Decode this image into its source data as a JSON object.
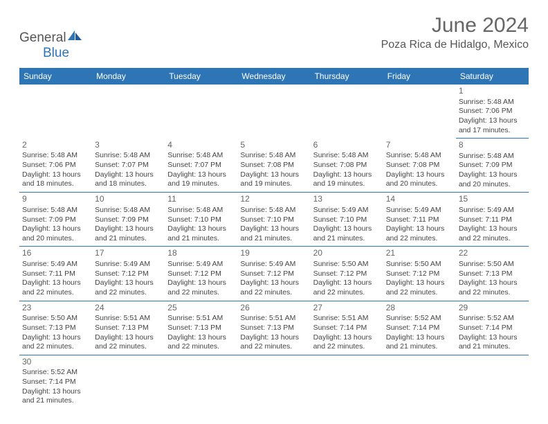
{
  "brand": {
    "left": "General",
    "right": "Blue"
  },
  "title": "June 2024",
  "location": "Poza Rica de Hidalgo, Mexico",
  "colors": {
    "header_bg": "#2e75b6",
    "header_fg": "#ffffff",
    "border": "#2e75b6",
    "text": "#444444"
  },
  "weekdays": [
    "Sunday",
    "Monday",
    "Tuesday",
    "Wednesday",
    "Thursday",
    "Friday",
    "Saturday"
  ],
  "weeks": [
    [
      null,
      null,
      null,
      null,
      null,
      null,
      {
        "day": "1",
        "sunrise": "Sunrise: 5:48 AM",
        "sunset": "Sunset: 7:06 PM",
        "daylight": "Daylight: 13 hours and 17 minutes."
      }
    ],
    [
      {
        "day": "2",
        "sunrise": "Sunrise: 5:48 AM",
        "sunset": "Sunset: 7:06 PM",
        "daylight": "Daylight: 13 hours and 18 minutes."
      },
      {
        "day": "3",
        "sunrise": "Sunrise: 5:48 AM",
        "sunset": "Sunset: 7:07 PM",
        "daylight": "Daylight: 13 hours and 18 minutes."
      },
      {
        "day": "4",
        "sunrise": "Sunrise: 5:48 AM",
        "sunset": "Sunset: 7:07 PM",
        "daylight": "Daylight: 13 hours and 19 minutes."
      },
      {
        "day": "5",
        "sunrise": "Sunrise: 5:48 AM",
        "sunset": "Sunset: 7:08 PM",
        "daylight": "Daylight: 13 hours and 19 minutes."
      },
      {
        "day": "6",
        "sunrise": "Sunrise: 5:48 AM",
        "sunset": "Sunset: 7:08 PM",
        "daylight": "Daylight: 13 hours and 19 minutes."
      },
      {
        "day": "7",
        "sunrise": "Sunrise: 5:48 AM",
        "sunset": "Sunset: 7:08 PM",
        "daylight": "Daylight: 13 hours and 20 minutes."
      },
      {
        "day": "8",
        "sunrise": "Sunrise: 5:48 AM",
        "sunset": "Sunset: 7:09 PM",
        "daylight": "Daylight: 13 hours and 20 minutes."
      }
    ],
    [
      {
        "day": "9",
        "sunrise": "Sunrise: 5:48 AM",
        "sunset": "Sunset: 7:09 PM",
        "daylight": "Daylight: 13 hours and 20 minutes."
      },
      {
        "day": "10",
        "sunrise": "Sunrise: 5:48 AM",
        "sunset": "Sunset: 7:09 PM",
        "daylight": "Daylight: 13 hours and 21 minutes."
      },
      {
        "day": "11",
        "sunrise": "Sunrise: 5:48 AM",
        "sunset": "Sunset: 7:10 PM",
        "daylight": "Daylight: 13 hours and 21 minutes."
      },
      {
        "day": "12",
        "sunrise": "Sunrise: 5:48 AM",
        "sunset": "Sunset: 7:10 PM",
        "daylight": "Daylight: 13 hours and 21 minutes."
      },
      {
        "day": "13",
        "sunrise": "Sunrise: 5:49 AM",
        "sunset": "Sunset: 7:10 PM",
        "daylight": "Daylight: 13 hours and 21 minutes."
      },
      {
        "day": "14",
        "sunrise": "Sunrise: 5:49 AM",
        "sunset": "Sunset: 7:11 PM",
        "daylight": "Daylight: 13 hours and 22 minutes."
      },
      {
        "day": "15",
        "sunrise": "Sunrise: 5:49 AM",
        "sunset": "Sunset: 7:11 PM",
        "daylight": "Daylight: 13 hours and 22 minutes."
      }
    ],
    [
      {
        "day": "16",
        "sunrise": "Sunrise: 5:49 AM",
        "sunset": "Sunset: 7:11 PM",
        "daylight": "Daylight: 13 hours and 22 minutes."
      },
      {
        "day": "17",
        "sunrise": "Sunrise: 5:49 AM",
        "sunset": "Sunset: 7:12 PM",
        "daylight": "Daylight: 13 hours and 22 minutes."
      },
      {
        "day": "18",
        "sunrise": "Sunrise: 5:49 AM",
        "sunset": "Sunset: 7:12 PM",
        "daylight": "Daylight: 13 hours and 22 minutes."
      },
      {
        "day": "19",
        "sunrise": "Sunrise: 5:49 AM",
        "sunset": "Sunset: 7:12 PM",
        "daylight": "Daylight: 13 hours and 22 minutes."
      },
      {
        "day": "20",
        "sunrise": "Sunrise: 5:50 AM",
        "sunset": "Sunset: 7:12 PM",
        "daylight": "Daylight: 13 hours and 22 minutes."
      },
      {
        "day": "21",
        "sunrise": "Sunrise: 5:50 AM",
        "sunset": "Sunset: 7:12 PM",
        "daylight": "Daylight: 13 hours and 22 minutes."
      },
      {
        "day": "22",
        "sunrise": "Sunrise: 5:50 AM",
        "sunset": "Sunset: 7:13 PM",
        "daylight": "Daylight: 13 hours and 22 minutes."
      }
    ],
    [
      {
        "day": "23",
        "sunrise": "Sunrise: 5:50 AM",
        "sunset": "Sunset: 7:13 PM",
        "daylight": "Daylight: 13 hours and 22 minutes."
      },
      {
        "day": "24",
        "sunrise": "Sunrise: 5:51 AM",
        "sunset": "Sunset: 7:13 PM",
        "daylight": "Daylight: 13 hours and 22 minutes."
      },
      {
        "day": "25",
        "sunrise": "Sunrise: 5:51 AM",
        "sunset": "Sunset: 7:13 PM",
        "daylight": "Daylight: 13 hours and 22 minutes."
      },
      {
        "day": "26",
        "sunrise": "Sunrise: 5:51 AM",
        "sunset": "Sunset: 7:13 PM",
        "daylight": "Daylight: 13 hours and 22 minutes."
      },
      {
        "day": "27",
        "sunrise": "Sunrise: 5:51 AM",
        "sunset": "Sunset: 7:14 PM",
        "daylight": "Daylight: 13 hours and 22 minutes."
      },
      {
        "day": "28",
        "sunrise": "Sunrise: 5:52 AM",
        "sunset": "Sunset: 7:14 PM",
        "daylight": "Daylight: 13 hours and 21 minutes."
      },
      {
        "day": "29",
        "sunrise": "Sunrise: 5:52 AM",
        "sunset": "Sunset: 7:14 PM",
        "daylight": "Daylight: 13 hours and 21 minutes."
      }
    ],
    [
      {
        "day": "30",
        "sunrise": "Sunrise: 5:52 AM",
        "sunset": "Sunset: 7:14 PM",
        "daylight": "Daylight: 13 hours and 21 minutes."
      },
      null,
      null,
      null,
      null,
      null,
      null
    ]
  ]
}
